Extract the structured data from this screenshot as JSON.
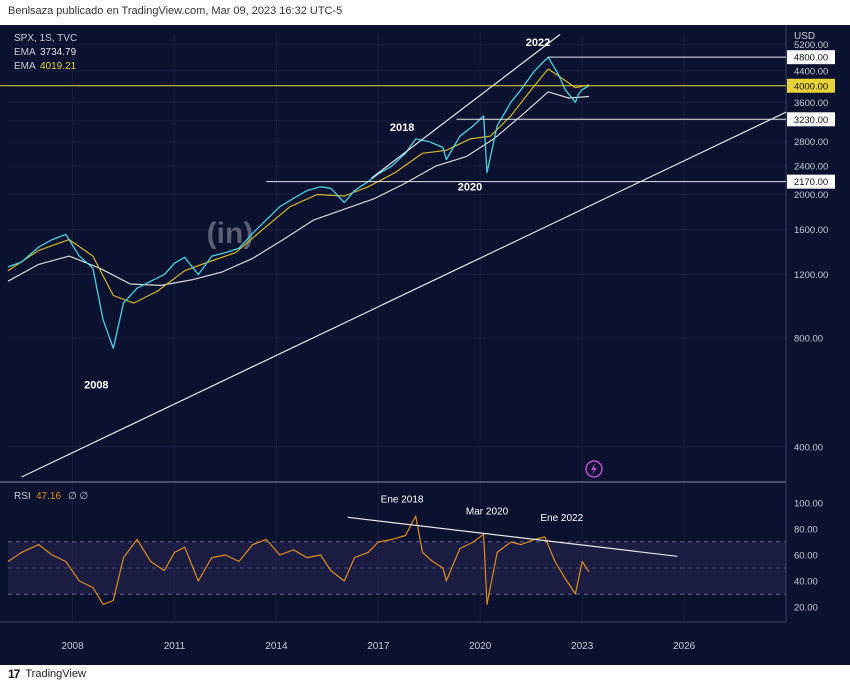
{
  "header": {
    "text": "Benlsaza publicado en TradingView.com, Mar 09, 2023 16:32 UTC-5"
  },
  "legend": {
    "symbol": "SPX, 1S, TVC",
    "ema1_label": "EMA",
    "ema1_value": "3734.79",
    "ema2_label": "EMA",
    "ema2_value": "4019.21",
    "rsi_label": "RSI",
    "rsi_value": "47.16",
    "rsi_extra": "∅ ∅"
  },
  "watermark": "(in)",
  "footer": {
    "brand": "TradingView"
  },
  "colors": {
    "background": "#0b1230",
    "price": "#4dd0e1",
    "ema_fast": "#d4b62a",
    "ema_slow": "#d8d8d8",
    "rsi": "#e08a1e",
    "hline_yellow": "#e6d33a"
  },
  "chart_data": [
    {
      "type": "line",
      "title": "SPX",
      "ylabel": "USD",
      "y_scale": "log",
      "ylim": [
        330,
        5600
      ],
      "xlim": [
        2006.1,
        2029.0
      ],
      "x_ticks": [
        "2008",
        "2011",
        "2014",
        "2017",
        "2020",
        "2023",
        "2026"
      ],
      "y_ticks": [
        "400.00",
        "800.00",
        "1200.00",
        "1600.00",
        "2000.00",
        "2400.00",
        "2800.00",
        "3200.00",
        "3600.00",
        "4000.00",
        "4400.00",
        "5200.00"
      ],
      "price_labels": [
        "4800.00",
        "4000.00",
        "3230.00",
        "2170.00"
      ],
      "annotations": [
        "2022",
        "2018",
        "2020",
        "2008"
      ],
      "series": [
        {
          "x": [
            2006.1,
            2006.5,
            2007.0,
            2007.4,
            2007.8,
            2008.2,
            2008.6,
            2008.9,
            2009.2,
            2009.5,
            2009.9,
            2010.3,
            2010.7,
            2011.0,
            2011.3,
            2011.7,
            2012.1,
            2012.5,
            2012.9,
            2013.3,
            2013.7,
            2014.1,
            2014.5,
            2014.9,
            2015.3,
            2015.6,
            2016.0,
            2016.3,
            2016.7,
            2017.0,
            2017.4,
            2017.8,
            2018.1,
            2018.5,
            2018.9,
            2019.0,
            2019.4,
            2019.8,
            2020.1,
            2020.2,
            2020.5,
            2020.9,
            2021.2,
            2021.6,
            2021.9,
            2022.0,
            2022.3,
            2022.5,
            2022.8,
            2022.9,
            2023.0,
            2023.2
          ],
          "values": [
            1260,
            1300,
            1430,
            1500,
            1550,
            1350,
            1250,
            900,
            750,
            1000,
            1100,
            1150,
            1200,
            1290,
            1340,
            1200,
            1350,
            1380,
            1420,
            1560,
            1700,
            1850,
            1950,
            2050,
            2100,
            2080,
            1900,
            2050,
            2170,
            2280,
            2400,
            2600,
            2850,
            2800,
            2700,
            2500,
            2900,
            3100,
            3300,
            2300,
            3100,
            3600,
            3900,
            4400,
            4700,
            4800,
            4300,
            3900,
            3600,
            3800,
            3900,
            4000
          ]
        },
        {
          "name": "EMA",
          "x": [
            2006.1,
            2007.0,
            2007.9,
            2008.6,
            2009.2,
            2009.8,
            2010.5,
            2011.3,
            2012.0,
            2012.8,
            2013.6,
            2014.4,
            2015.2,
            2016.0,
            2016.7,
            2017.5,
            2018.3,
            2019.0,
            2019.7,
            2020.3,
            2020.9,
            2021.5,
            2022.0,
            2022.4,
            2022.8,
            2023.2
          ],
          "values": [
            1230,
            1400,
            1500,
            1350,
            1050,
            1000,
            1080,
            1230,
            1300,
            1380,
            1600,
            1850,
            2000,
            1980,
            2100,
            2300,
            2600,
            2650,
            2850,
            2900,
            3300,
            3900,
            4450,
            4200,
            3950,
            4019
          ]
        },
        {
          "name": "EMA",
          "x": [
            2006.1,
            2007.0,
            2007.9,
            2008.8,
            2009.7,
            2010.6,
            2011.5,
            2012.4,
            2013.3,
            2014.2,
            2015.1,
            2016.0,
            2016.9,
            2017.8,
            2018.7,
            2019.6,
            2020.4,
            2021.2,
            2022.0,
            2022.6,
            2023.2
          ],
          "values": [
            1150,
            1280,
            1350,
            1250,
            1130,
            1120,
            1160,
            1220,
            1330,
            1500,
            1700,
            1820,
            1950,
            2150,
            2400,
            2550,
            2850,
            3300,
            3850,
            3700,
            3735
          ]
        }
      ]
    },
    {
      "type": "line",
      "title": "RSI",
      "ylim": [
        10,
        110
      ],
      "xlim": [
        2006.1,
        2029.0
      ],
      "y_ticks": [
        "20.00",
        "40.00",
        "60.00",
        "80.00",
        "100.00"
      ],
      "annotations": [
        "Ene 2018",
        "Mar 2020",
        "Ene 2022"
      ],
      "series": [
        {
          "name": "RSI",
          "x": [
            2006.1,
            2006.5,
            2007.0,
            2007.4,
            2007.8,
            2008.2,
            2008.6,
            2008.9,
            2009.2,
            2009.5,
            2009.9,
            2010.3,
            2010.7,
            2011.0,
            2011.3,
            2011.7,
            2012.1,
            2012.5,
            2012.9,
            2013.3,
            2013.7,
            2014.1,
            2014.5,
            2014.9,
            2015.3,
            2015.6,
            2016.0,
            2016.3,
            2016.7,
            2017.0,
            2017.4,
            2017.8,
            2018.1,
            2018.3,
            2018.6,
            2018.9,
            2019.0,
            2019.4,
            2019.8,
            2020.1,
            2020.2,
            2020.5,
            2020.9,
            2021.2,
            2021.6,
            2021.9,
            2022.2,
            2022.5,
            2022.8,
            2023.0,
            2023.2
          ],
          "values": [
            55,
            62,
            68,
            60,
            55,
            40,
            35,
            22,
            25,
            58,
            72,
            55,
            48,
            62,
            66,
            40,
            58,
            60,
            55,
            68,
            72,
            60,
            64,
            58,
            60,
            48,
            40,
            58,
            62,
            70,
            72,
            75,
            90,
            62,
            55,
            50,
            40,
            65,
            70,
            76,
            22,
            62,
            70,
            68,
            72,
            74,
            55,
            42,
            30,
            55,
            47
          ]
        }
      ]
    }
  ]
}
